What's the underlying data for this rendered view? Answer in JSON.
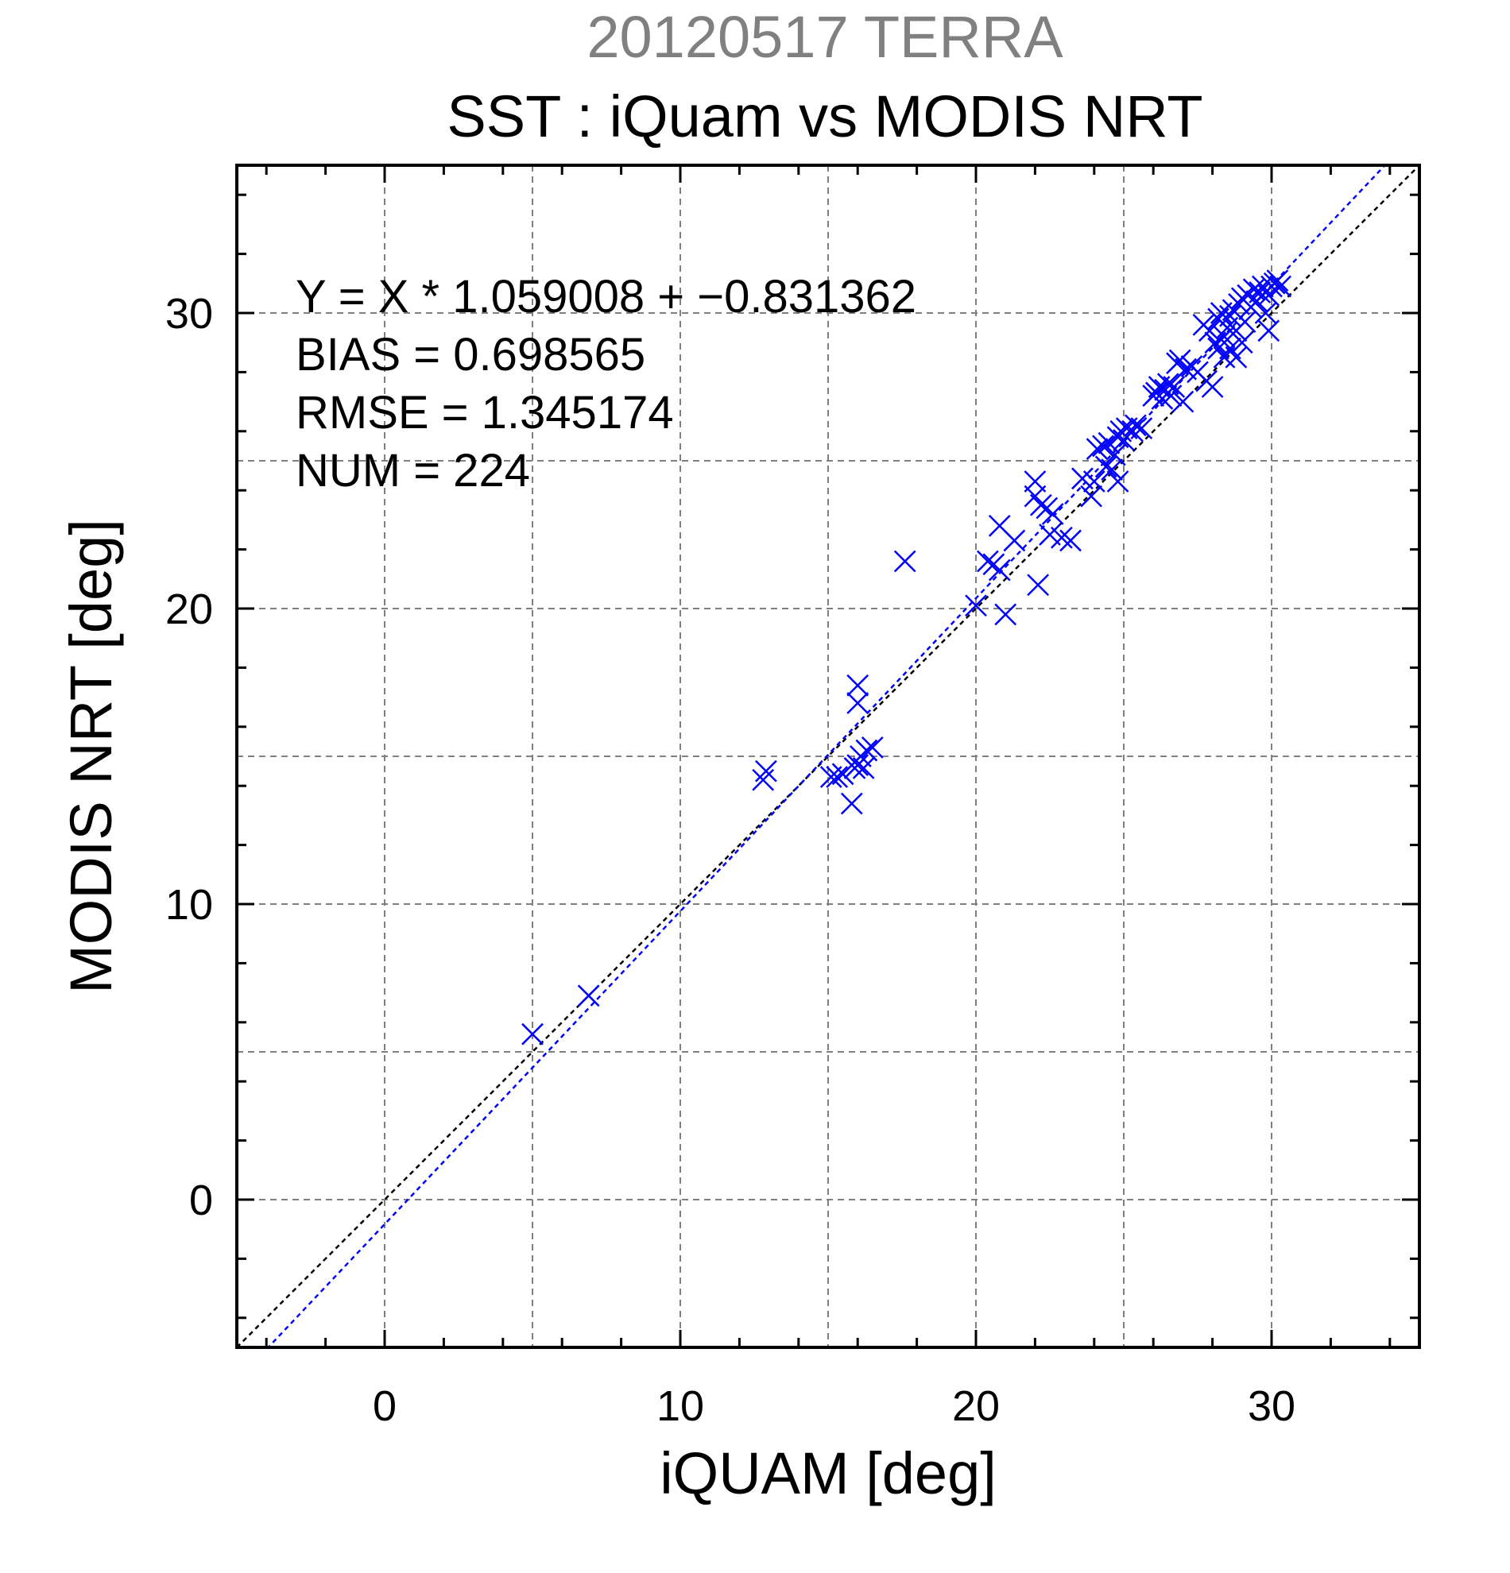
{
  "title": "20120517 TERRA",
  "subtitle": "SST : iQuam vs MODIS NRT",
  "stats": [
    "Y = X * 1.059008 + −0.831362",
    "BIAS = 0.698565",
    "RMSE = 1.345174",
    "NUM = 224"
  ],
  "colors": {
    "points": "#0000ff",
    "fit_line": "#0000ff",
    "identity_line": "#000000",
    "grid": "#808080",
    "title_gray": "#808080"
  },
  "chart_data": {
    "type": "scatter",
    "title": "20120517 TERRA",
    "subtitle": "SST : iQuam vs MODIS NRT",
    "xlabel": "iQUAM [deg]",
    "ylabel": "MODIS NRT [deg]",
    "xlim": [
      -5,
      35
    ],
    "ylim": [
      -5,
      35
    ],
    "xticks": [
      0,
      10,
      20,
      30
    ],
    "yticks": [
      0,
      10,
      20,
      30
    ],
    "grid": true,
    "marker": "x",
    "fit_line": {
      "slope": 1.059008,
      "intercept": -0.831362
    },
    "identity_line": {
      "slope": 1,
      "intercept": 0
    },
    "points": [
      [
        5.0,
        5.6
      ],
      [
        6.9,
        6.9
      ],
      [
        12.8,
        14.2
      ],
      [
        12.9,
        14.5
      ],
      [
        15.1,
        14.3
      ],
      [
        15.3,
        14.3
      ],
      [
        15.5,
        14.4
      ],
      [
        15.8,
        13.4
      ],
      [
        15.9,
        14.6
      ],
      [
        16.0,
        14.7
      ],
      [
        16.0,
        17.4
      ],
      [
        16.0,
        16.8
      ],
      [
        16.1,
        15.0
      ],
      [
        16.2,
        14.6
      ],
      [
        16.3,
        15.2
      ],
      [
        16.5,
        15.3
      ],
      [
        17.6,
        21.6
      ],
      [
        20.0,
        20.1
      ],
      [
        20.4,
        21.6
      ],
      [
        20.6,
        21.5
      ],
      [
        20.8,
        22.8
      ],
      [
        20.8,
        21.3
      ],
      [
        21.0,
        19.8
      ],
      [
        21.3,
        22.3
      ],
      [
        22.0,
        24.3
      ],
      [
        22.0,
        23.8
      ],
      [
        22.1,
        20.8
      ],
      [
        22.2,
        23.5
      ],
      [
        22.4,
        23.4
      ],
      [
        22.5,
        22.5
      ],
      [
        22.6,
        23.2
      ],
      [
        22.9,
        22.4
      ],
      [
        23.2,
        22.3
      ],
      [
        23.6,
        24.4
      ],
      [
        23.9,
        23.8
      ],
      [
        24.0,
        24.3
      ],
      [
        24.1,
        25.4
      ],
      [
        24.3,
        25.5
      ],
      [
        24.4,
        24.8
      ],
      [
        24.5,
        25.6
      ],
      [
        24.6,
        24.7
      ],
      [
        24.7,
        25.2
      ],
      [
        24.8,
        25.8
      ],
      [
        24.8,
        24.3
      ],
      [
        24.9,
        26.0
      ],
      [
        25.0,
        25.7
      ],
      [
        25.1,
        26.1
      ],
      [
        25.3,
        26.0
      ],
      [
        25.4,
        26.2
      ],
      [
        25.6,
        26.1
      ],
      [
        26.0,
        27.2
      ],
      [
        26.1,
        27.3
      ],
      [
        26.2,
        27.5
      ],
      [
        26.3,
        27.1
      ],
      [
        26.4,
        27.4
      ],
      [
        26.5,
        27.6
      ],
      [
        26.6,
        27.2
      ],
      [
        26.7,
        27.5
      ],
      [
        26.8,
        28.3
      ],
      [
        26.9,
        28.4
      ],
      [
        27.0,
        27.0
      ],
      [
        27.1,
        28.1
      ],
      [
        27.3,
        28.2
      ],
      [
        27.5,
        28.0
      ],
      [
        27.7,
        29.6
      ],
      [
        27.8,
        27.7
      ],
      [
        27.9,
        29.4
      ],
      [
        28.0,
        27.5
      ],
      [
        28.1,
        29.0
      ],
      [
        28.2,
        29.8
      ],
      [
        28.2,
        28.8
      ],
      [
        28.3,
        30.0
      ],
      [
        28.4,
        29.2
      ],
      [
        28.4,
        28.5
      ],
      [
        28.5,
        29.5
      ],
      [
        28.6,
        29.9
      ],
      [
        28.6,
        28.8
      ],
      [
        28.7,
        30.1
      ],
      [
        28.8,
        29.4
      ],
      [
        28.8,
        28.5
      ],
      [
        28.9,
        30.3
      ],
      [
        29.0,
        29.0
      ],
      [
        29.0,
        30.5
      ],
      [
        29.1,
        29.7
      ],
      [
        29.2,
        30.6
      ],
      [
        29.3,
        30.2
      ],
      [
        29.4,
        30.8
      ],
      [
        29.5,
        30.4
      ],
      [
        29.6,
        30.7
      ],
      [
        29.7,
        30.9
      ],
      [
        29.8,
        30.0
      ],
      [
        29.9,
        30.6
      ],
      [
        29.9,
        29.4
      ],
      [
        30.0,
        30.9
      ],
      [
        30.1,
        31.0
      ],
      [
        30.2,
        31.1
      ],
      [
        30.3,
        30.9
      ]
    ]
  }
}
